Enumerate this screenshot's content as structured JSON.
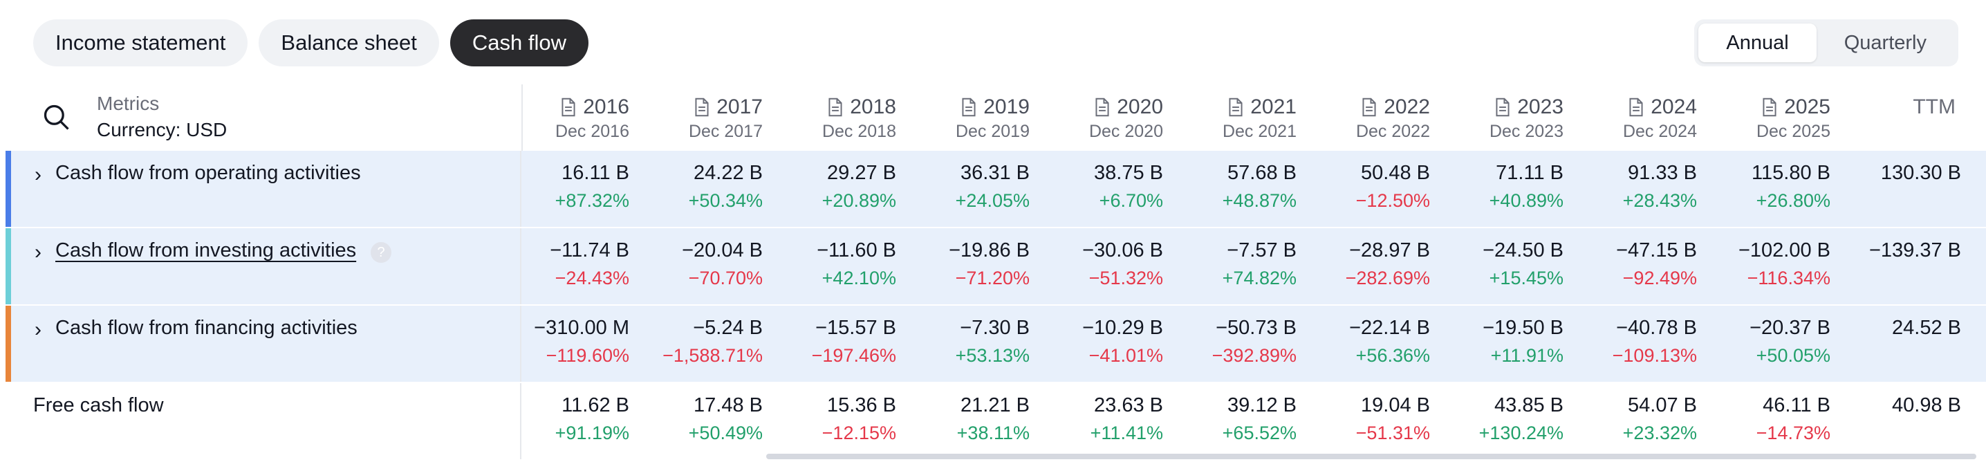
{
  "tabs": [
    {
      "label": "Income statement",
      "active": false
    },
    {
      "label": "Balance sheet",
      "active": false
    },
    {
      "label": "Cash flow",
      "active": true
    }
  ],
  "period": [
    {
      "label": "Annual",
      "active": true
    },
    {
      "label": "Quarterly",
      "active": false
    }
  ],
  "header": {
    "metrics_label": "Metrics",
    "currency_label": "Currency: USD",
    "columns": [
      {
        "year": "2016",
        "sub": "Dec 2016"
      },
      {
        "year": "2017",
        "sub": "Dec 2017"
      },
      {
        "year": "2018",
        "sub": "Dec 2018"
      },
      {
        "year": "2019",
        "sub": "Dec 2019"
      },
      {
        "year": "2020",
        "sub": "Dec 2020"
      },
      {
        "year": "2021",
        "sub": "Dec 2021"
      },
      {
        "year": "2022",
        "sub": "Dec 2022"
      },
      {
        "year": "2023",
        "sub": "Dec 2023"
      },
      {
        "year": "2024",
        "sub": "Dec 2024"
      },
      {
        "year": "2025",
        "sub": "Dec 2025"
      }
    ],
    "ttm_label": "TTM"
  },
  "colors": {
    "operating": "#4a7de8",
    "investing": "#6dcfd8",
    "financing": "#e8853a",
    "positive": "#22a06b",
    "negative": "#e5384a",
    "row_highlight": "#e8f0fb"
  },
  "rows": [
    {
      "label": "Cash flow from operating activities",
      "expandable": true,
      "values": [
        "16.11 B",
        "24.22 B",
        "29.27 B",
        "36.31 B",
        "38.75 B",
        "57.68 B",
        "50.48 B",
        "71.11 B",
        "91.33 B",
        "115.80 B",
        "130.30 B"
      ],
      "changes": [
        "+87.32%",
        "+50.34%",
        "+20.89%",
        "+24.05%",
        "+6.70%",
        "+48.87%",
        "−12.50%",
        "+40.89%",
        "+28.43%",
        "+26.80%"
      ]
    },
    {
      "label": "Cash flow from investing activities",
      "expandable": true,
      "help": "?",
      "values": [
        "−11.74 B",
        "−20.04 B",
        "−11.60 B",
        "−19.86 B",
        "−30.06 B",
        "−7.57 B",
        "−28.97 B",
        "−24.50 B",
        "−47.15 B",
        "−102.00 B",
        "−139.37 B"
      ],
      "changes": [
        "−24.43%",
        "−70.70%",
        "+42.10%",
        "−71.20%",
        "−51.32%",
        "+74.82%",
        "−282.69%",
        "+15.45%",
        "−92.49%",
        "−116.34%"
      ]
    },
    {
      "label": "Cash flow from financing activities",
      "expandable": true,
      "values": [
        "−310.00 M",
        "−5.24 B",
        "−15.57 B",
        "−7.30 B",
        "−10.29 B",
        "−50.73 B",
        "−22.14 B",
        "−19.50 B",
        "−40.78 B",
        "−20.37 B",
        "24.52 B"
      ],
      "changes": [
        "−119.60%",
        "−1,588.71%",
        "−197.46%",
        "+53.13%",
        "−41.01%",
        "−392.89%",
        "+56.36%",
        "+11.91%",
        "−109.13%",
        "+50.05%"
      ]
    },
    {
      "label": "Free cash flow",
      "expandable": false,
      "values": [
        "11.62 B",
        "17.48 B",
        "15.36 B",
        "21.21 B",
        "23.63 B",
        "39.12 B",
        "19.04 B",
        "43.85 B",
        "54.07 B",
        "46.11 B",
        "40.98 B"
      ],
      "changes": [
        "+91.19%",
        "+50.49%",
        "−12.15%",
        "+38.11%",
        "+11.41%",
        "+65.52%",
        "−51.31%",
        "+130.24%",
        "+23.32%",
        "−14.73%"
      ]
    }
  ]
}
